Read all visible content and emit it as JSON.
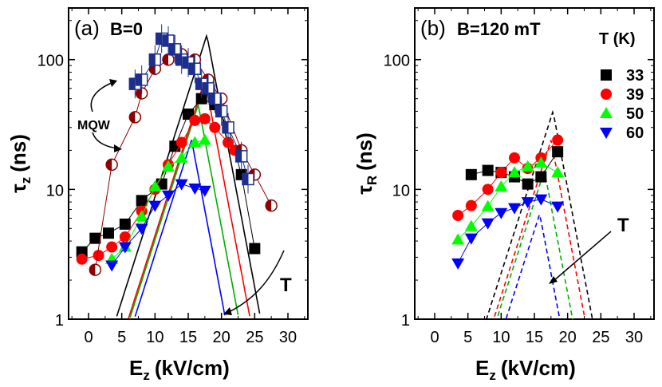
{
  "chart_data": [
    {
      "type": "scatter",
      "panel": "(a)",
      "title": "B=0",
      "xlabel_main": "E",
      "xlabel_sub": "z",
      "xlabel_unit": "(kV/cm)",
      "ylabel_main": "τ",
      "ylabel_sub": "z",
      "ylabel_unit": "(ns)",
      "yscale": "log",
      "xlim": [
        -3,
        33
      ],
      "ylim": [
        1,
        250
      ],
      "xticks": [
        "0",
        "5",
        "10",
        "15",
        "20",
        "25",
        "30"
      ],
      "yticks": [
        "1",
        "10",
        "100"
      ],
      "annotations": [
        "MQW",
        "T"
      ],
      "series": [
        {
          "name": "33 K",
          "color": "#000000",
          "marker": "square",
          "x": [
            -1,
            1,
            3,
            5.5,
            8,
            11,
            13,
            15,
            17,
            19,
            21,
            23,
            25
          ],
          "y": [
            3.3,
            4.2,
            4.6,
            5.4,
            8.2,
            11,
            21.5,
            38,
            50,
            45,
            30,
            13,
            3.5
          ]
        },
        {
          "name": "39 K",
          "color": "#ff0000",
          "marker": "circle",
          "x": [
            -1,
            1.5,
            3.5,
            5.5,
            8,
            10,
            12,
            14,
            16,
            17.5,
            19,
            21,
            22
          ],
          "y": [
            2.9,
            3.1,
            3.6,
            4.3,
            6.8,
            10,
            15.5,
            23,
            34,
            35,
            30,
            23,
            20
          ]
        },
        {
          "name": "50 K",
          "color": "#00ff00",
          "marker": "triangle-up",
          "x": [
            3.5,
            5.5,
            8,
            10,
            12,
            14,
            16,
            17.5
          ],
          "y": [
            2.9,
            3.6,
            6.2,
            10.5,
            15,
            17.5,
            23,
            24
          ]
        },
        {
          "name": "60 K",
          "color": "#0000ff",
          "marker": "triangle-down",
          "x": [
            3.5,
            5.5,
            8,
            10,
            12,
            14,
            16,
            17.5
          ],
          "y": [
            2.6,
            3.6,
            5,
            7.5,
            9,
            11,
            10.2,
            9.8
          ]
        },
        {
          "name": "MQW",
          "color": "#8b0000",
          "marker": "half-circle",
          "x": [
            1,
            3.5,
            7,
            8,
            10,
            12,
            14,
            16,
            18,
            20,
            23,
            25,
            27.5
          ],
          "y": [
            2.4,
            15.5,
            36,
            55,
            85,
            100,
            110,
            100,
            70,
            50,
            20,
            13,
            7.5
          ]
        },
        {
          "name": "MQW (squares)",
          "color": "#1c2f8c",
          "marker": "half-square",
          "x": [
            7,
            8,
            10,
            11,
            12,
            13,
            14,
            15,
            16,
            17,
            18,
            19,
            20,
            21,
            23,
            24
          ],
          "y": [
            65,
            70,
            100,
            145,
            140,
            120,
            100,
            95,
            85,
            65,
            60,
            50,
            40,
            30,
            18,
            12
          ]
        }
      ],
      "fit_curves": [
        {
          "name": "33 K",
          "color": "#000000",
          "peak_x": 17.8,
          "peak_y": 155
        },
        {
          "name": "39 K",
          "color": "#ff0000",
          "peak_x": 17.5,
          "peak_y": 70
        },
        {
          "name": "50 K",
          "color": "#00b000",
          "peak_x": 16.5,
          "peak_y": 45
        },
        {
          "name": "60 K",
          "color": "#0000ff",
          "peak_x": 15.5,
          "peak_y": 24
        }
      ]
    },
    {
      "type": "scatter",
      "panel": "(b)",
      "title": "B=120 mT",
      "xlabel_main": "E",
      "xlabel_sub": "z",
      "xlabel_unit": "(kV/cm)",
      "ylabel_main": "τ",
      "ylabel_sub": "R",
      "ylabel_unit": "(ns)",
      "yscale": "log",
      "xlim": [
        -3,
        33
      ],
      "ylim": [
        1,
        250
      ],
      "xticks": [
        "0",
        "5",
        "10",
        "15",
        "20",
        "25",
        "30"
      ],
      "yticks": [
        "1",
        "10",
        "100"
      ],
      "legend_title": "T (K)",
      "legend_placement": "top-right",
      "annotations": [
        "T"
      ],
      "series": [
        {
          "name": "33",
          "color": "#000000",
          "marker": "square",
          "x": [
            5.5,
            8,
            10,
            12,
            14,
            16,
            18.5
          ],
          "y": [
            13,
            14,
            13.5,
            12.5,
            11,
            12.5,
            19.5
          ]
        },
        {
          "name": "39",
          "color": "#ff0000",
          "marker": "circle",
          "x": [
            3.5,
            5.5,
            8,
            10,
            12,
            14,
            16,
            18.5
          ],
          "y": [
            6.3,
            7.5,
            10,
            13.5,
            17.5,
            14.5,
            17.5,
            24
          ]
        },
        {
          "name": "50",
          "color": "#00ff00",
          "marker": "triangle-up",
          "x": [
            3.5,
            5.5,
            8,
            10,
            12,
            14,
            16,
            18.5
          ],
          "y": [
            4.1,
            5.2,
            7.4,
            10.5,
            13.5,
            15,
            16,
            13.5
          ]
        },
        {
          "name": "60",
          "color": "#0000ff",
          "marker": "triangle-down",
          "x": [
            3.5,
            5.5,
            8,
            10,
            12,
            14,
            16,
            18.5
          ],
          "y": [
            2.7,
            4.2,
            5.5,
            6.6,
            7.2,
            8,
            8.4,
            7.4
          ]
        }
      ],
      "fit_curves": [
        {
          "name": "33",
          "color": "#000000",
          "peak_x": 17.8,
          "peak_y": 40
        },
        {
          "name": "39",
          "color": "#ff0000",
          "peak_x": 17.5,
          "peak_y": 24
        },
        {
          "name": "50",
          "color": "#00b000",
          "peak_x": 16.5,
          "peak_y": 14
        },
        {
          "name": "60",
          "color": "#0000ff",
          "peak_x": 15.8,
          "peak_y": 6.5
        }
      ]
    }
  ]
}
